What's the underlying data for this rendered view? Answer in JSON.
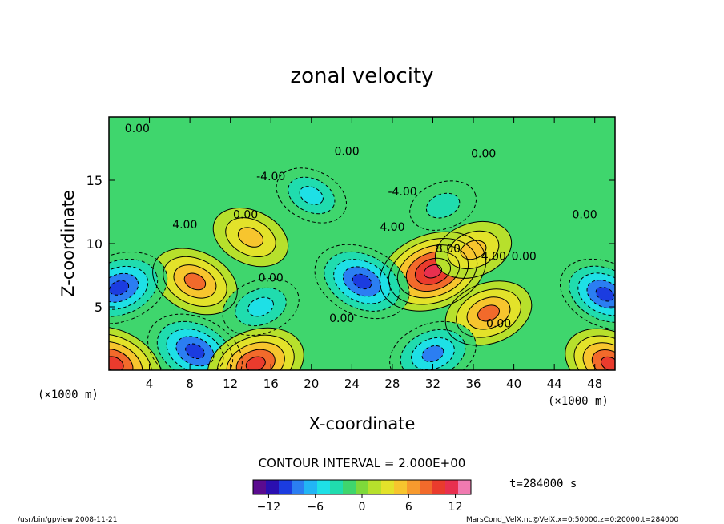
{
  "chart_data": {
    "type": "heatmap",
    "title": "zonal velocity",
    "xlabel": "X-coordinate",
    "ylabel": "Z-coordinate",
    "x_unit_left": "(×1000 m)",
    "x_unit_right": "(×1000 m)",
    "xlim": [
      0,
      50
    ],
    "ylim": [
      0,
      20
    ],
    "x_ticks": [
      4,
      8,
      12,
      16,
      20,
      24,
      28,
      32,
      36,
      40,
      44,
      48
    ],
    "y_ticks": [
      5,
      10,
      15
    ],
    "contour_interval_text": "CONTOUR INTERVAL = 2.000E+00",
    "time_text": "t=284000 s",
    "colorbar": {
      "range": [
        -14,
        14
      ],
      "ticks": [
        -12,
        -6,
        0,
        6,
        12
      ],
      "colors": [
        "#5a0b8f",
        "#2a0fb0",
        "#1b3ce0",
        "#2b7ef2",
        "#22b5f5",
        "#1ee0e6",
        "#20dcae",
        "#3fd66d",
        "#7ed93a",
        "#b7e02c",
        "#e3e22a",
        "#f7c52e",
        "#f79a2e",
        "#f26a2b",
        "#ea3b2d",
        "#e8304f",
        "#f07ab0"
      ]
    },
    "contour_labels": [
      {
        "text": "0.00",
        "x": 2.8,
        "z": 18.8
      },
      {
        "text": "0.00",
        "x": 23.5,
        "z": 17.0
      },
      {
        "text": "0.00",
        "x": 37.0,
        "z": 16.8
      },
      {
        "text": "-4.00",
        "x": 16.0,
        "z": 15.0
      },
      {
        "text": "-4.00",
        "x": 29.0,
        "z": 13.8
      },
      {
        "text": "0.00",
        "x": 13.5,
        "z": 12.0
      },
      {
        "text": "0.00",
        "x": 47.0,
        "z": 12.0
      },
      {
        "text": "4.00",
        "x": 7.5,
        "z": 11.2
      },
      {
        "text": "4.00",
        "x": 28.0,
        "z": 11.0
      },
      {
        "text": "8.00",
        "x": 33.5,
        "z": 9.3
      },
      {
        "text": "4.00",
        "x": 38.0,
        "z": 8.7
      },
      {
        "text": "0.00",
        "x": 41.0,
        "z": 8.7
      },
      {
        "text": "0.00",
        "x": 16.0,
        "z": 7.0
      },
      {
        "text": "0.00",
        "x": 23.0,
        "z": 3.8
      },
      {
        "text": "0.00",
        "x": 38.5,
        "z": 3.4
      }
    ],
    "features": [
      {
        "x": 32.0,
        "z": 7.8,
        "value": 12
      },
      {
        "x": 8.5,
        "z": 7.0,
        "value": 8
      },
      {
        "x": 37.5,
        "z": 4.5,
        "value": 8
      },
      {
        "x": 25.0,
        "z": 7.0,
        "value": -10
      },
      {
        "x": 1.0,
        "z": 6.5,
        "value": -10
      },
      {
        "x": 49.0,
        "z": 6.0,
        "value": -9
      },
      {
        "x": 15.0,
        "z": 5.0,
        "value": -6
      },
      {
        "x": 8.5,
        "z": 1.5,
        "value": -10
      },
      {
        "x": 32.0,
        "z": 1.3,
        "value": -8
      },
      {
        "x": 20.0,
        "z": 13.8,
        "value": -5
      },
      {
        "x": 33.0,
        "z": 13.0,
        "value": -4
      },
      {
        "x": 14.0,
        "z": 10.5,
        "value": 6
      },
      {
        "x": 36.0,
        "z": 9.5,
        "value": 6
      },
      {
        "x": 0.5,
        "z": 0.5,
        "value": 10
      },
      {
        "x": 14.5,
        "z": 0.5,
        "value": 10
      },
      {
        "x": 49.5,
        "z": 0.5,
        "value": 9
      }
    ]
  },
  "footer": {
    "left_text": "/usr/bin/gpview   2008-11-21",
    "right_text": "MarsCond_VelX.nc@VelX,x=0:50000,z=0:20000,t=284000"
  }
}
